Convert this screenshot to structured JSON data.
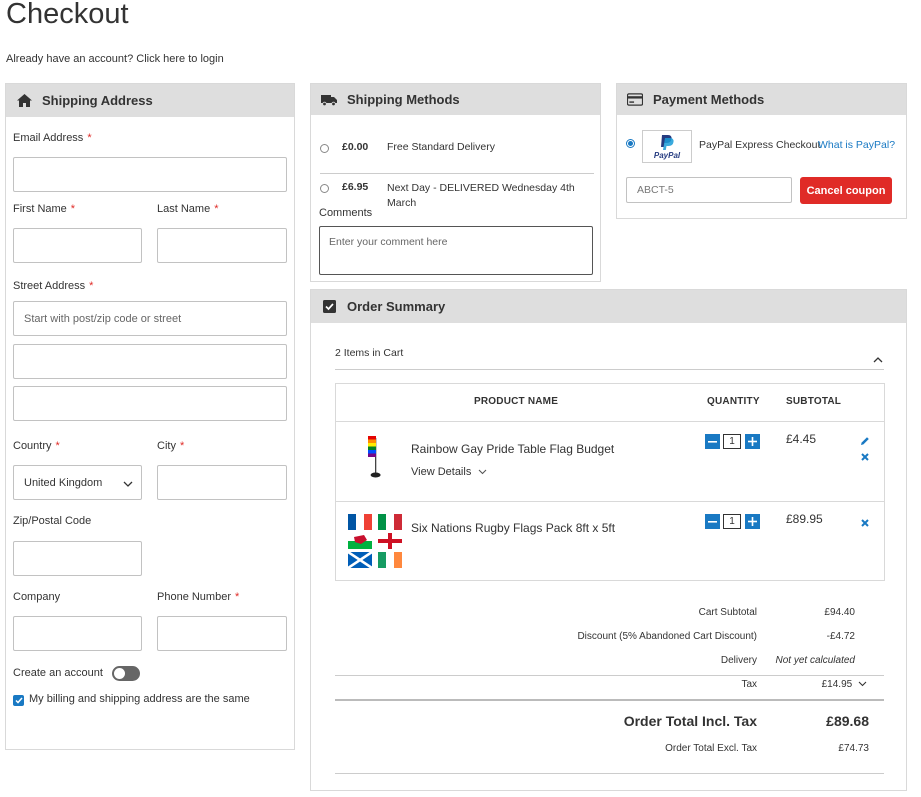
{
  "page": {
    "title": "Checkout",
    "login_prompt": "Already have an account? Click here to login"
  },
  "shipping_address": {
    "heading": "Shipping Address",
    "required_mark": "*",
    "email_label": "Email Address",
    "first_name_label": "First Name",
    "last_name_label": "Last Name",
    "street_label": "Street Address",
    "street_placeholder": "Start with post/zip code or street",
    "country_label": "Country",
    "country_value": "United Kingdom",
    "city_label": "City",
    "zip_label": "Zip/Postal Code",
    "company_label": "Company",
    "phone_label": "Phone Number",
    "create_account_label": "Create an account",
    "create_account_on": false,
    "same_address_label": "My billing and shipping address are the same",
    "same_address_checked": true
  },
  "shipping_methods": {
    "heading": "Shipping Methods",
    "options": [
      {
        "price": "£0.00",
        "name": "Free Standard Delivery",
        "selected": false
      },
      {
        "price": "£6.95",
        "name": "Next Day - DELIVERED Wednesday 4th March",
        "selected": false
      }
    ],
    "comments_label": "Comments",
    "comments_placeholder": "Enter your comment here"
  },
  "payment_methods": {
    "heading": "Payment Methods",
    "method_name": "PayPal Express Checkout",
    "what_is_link": "What is PayPal?",
    "logo_text": "PayPal",
    "coupon_value": "ABCT-5",
    "cancel_coupon_label": "Cancel coupon"
  },
  "order_summary": {
    "heading": "Order Summary",
    "items_in_cart": "2 Items in Cart",
    "columns": {
      "product": "PRODUCT NAME",
      "quantity": "QUANTITY",
      "subtotal": "SUBTOTAL"
    },
    "items": [
      {
        "name": "Rainbow Gay Pride Table Flag Budget",
        "details_link": "View Details",
        "qty": "1",
        "subtotal": "£4.45"
      },
      {
        "name": "Six Nations Rugby Flags Pack 8ft x 5ft",
        "qty": "1",
        "subtotal": "£89.95"
      }
    ],
    "totals": {
      "cart_subtotal_label": "Cart Subtotal",
      "cart_subtotal": "£94.40",
      "discount_label": "Discount (5% Abandoned Cart Discount)",
      "discount": "-£4.72",
      "delivery_label": "Delivery",
      "delivery": "Not yet calculated",
      "tax_label": "Tax",
      "tax": "£14.95",
      "order_total_incl_label": "Order Total Incl. Tax",
      "order_total_incl": "£89.68",
      "order_total_excl_label": "Order Total Excl. Tax",
      "order_total_excl": "£74.73"
    }
  },
  "colors": {
    "accent_blue": "#1979c3",
    "danger_red": "#e02b27",
    "panel_header_bg": "#dedede"
  }
}
